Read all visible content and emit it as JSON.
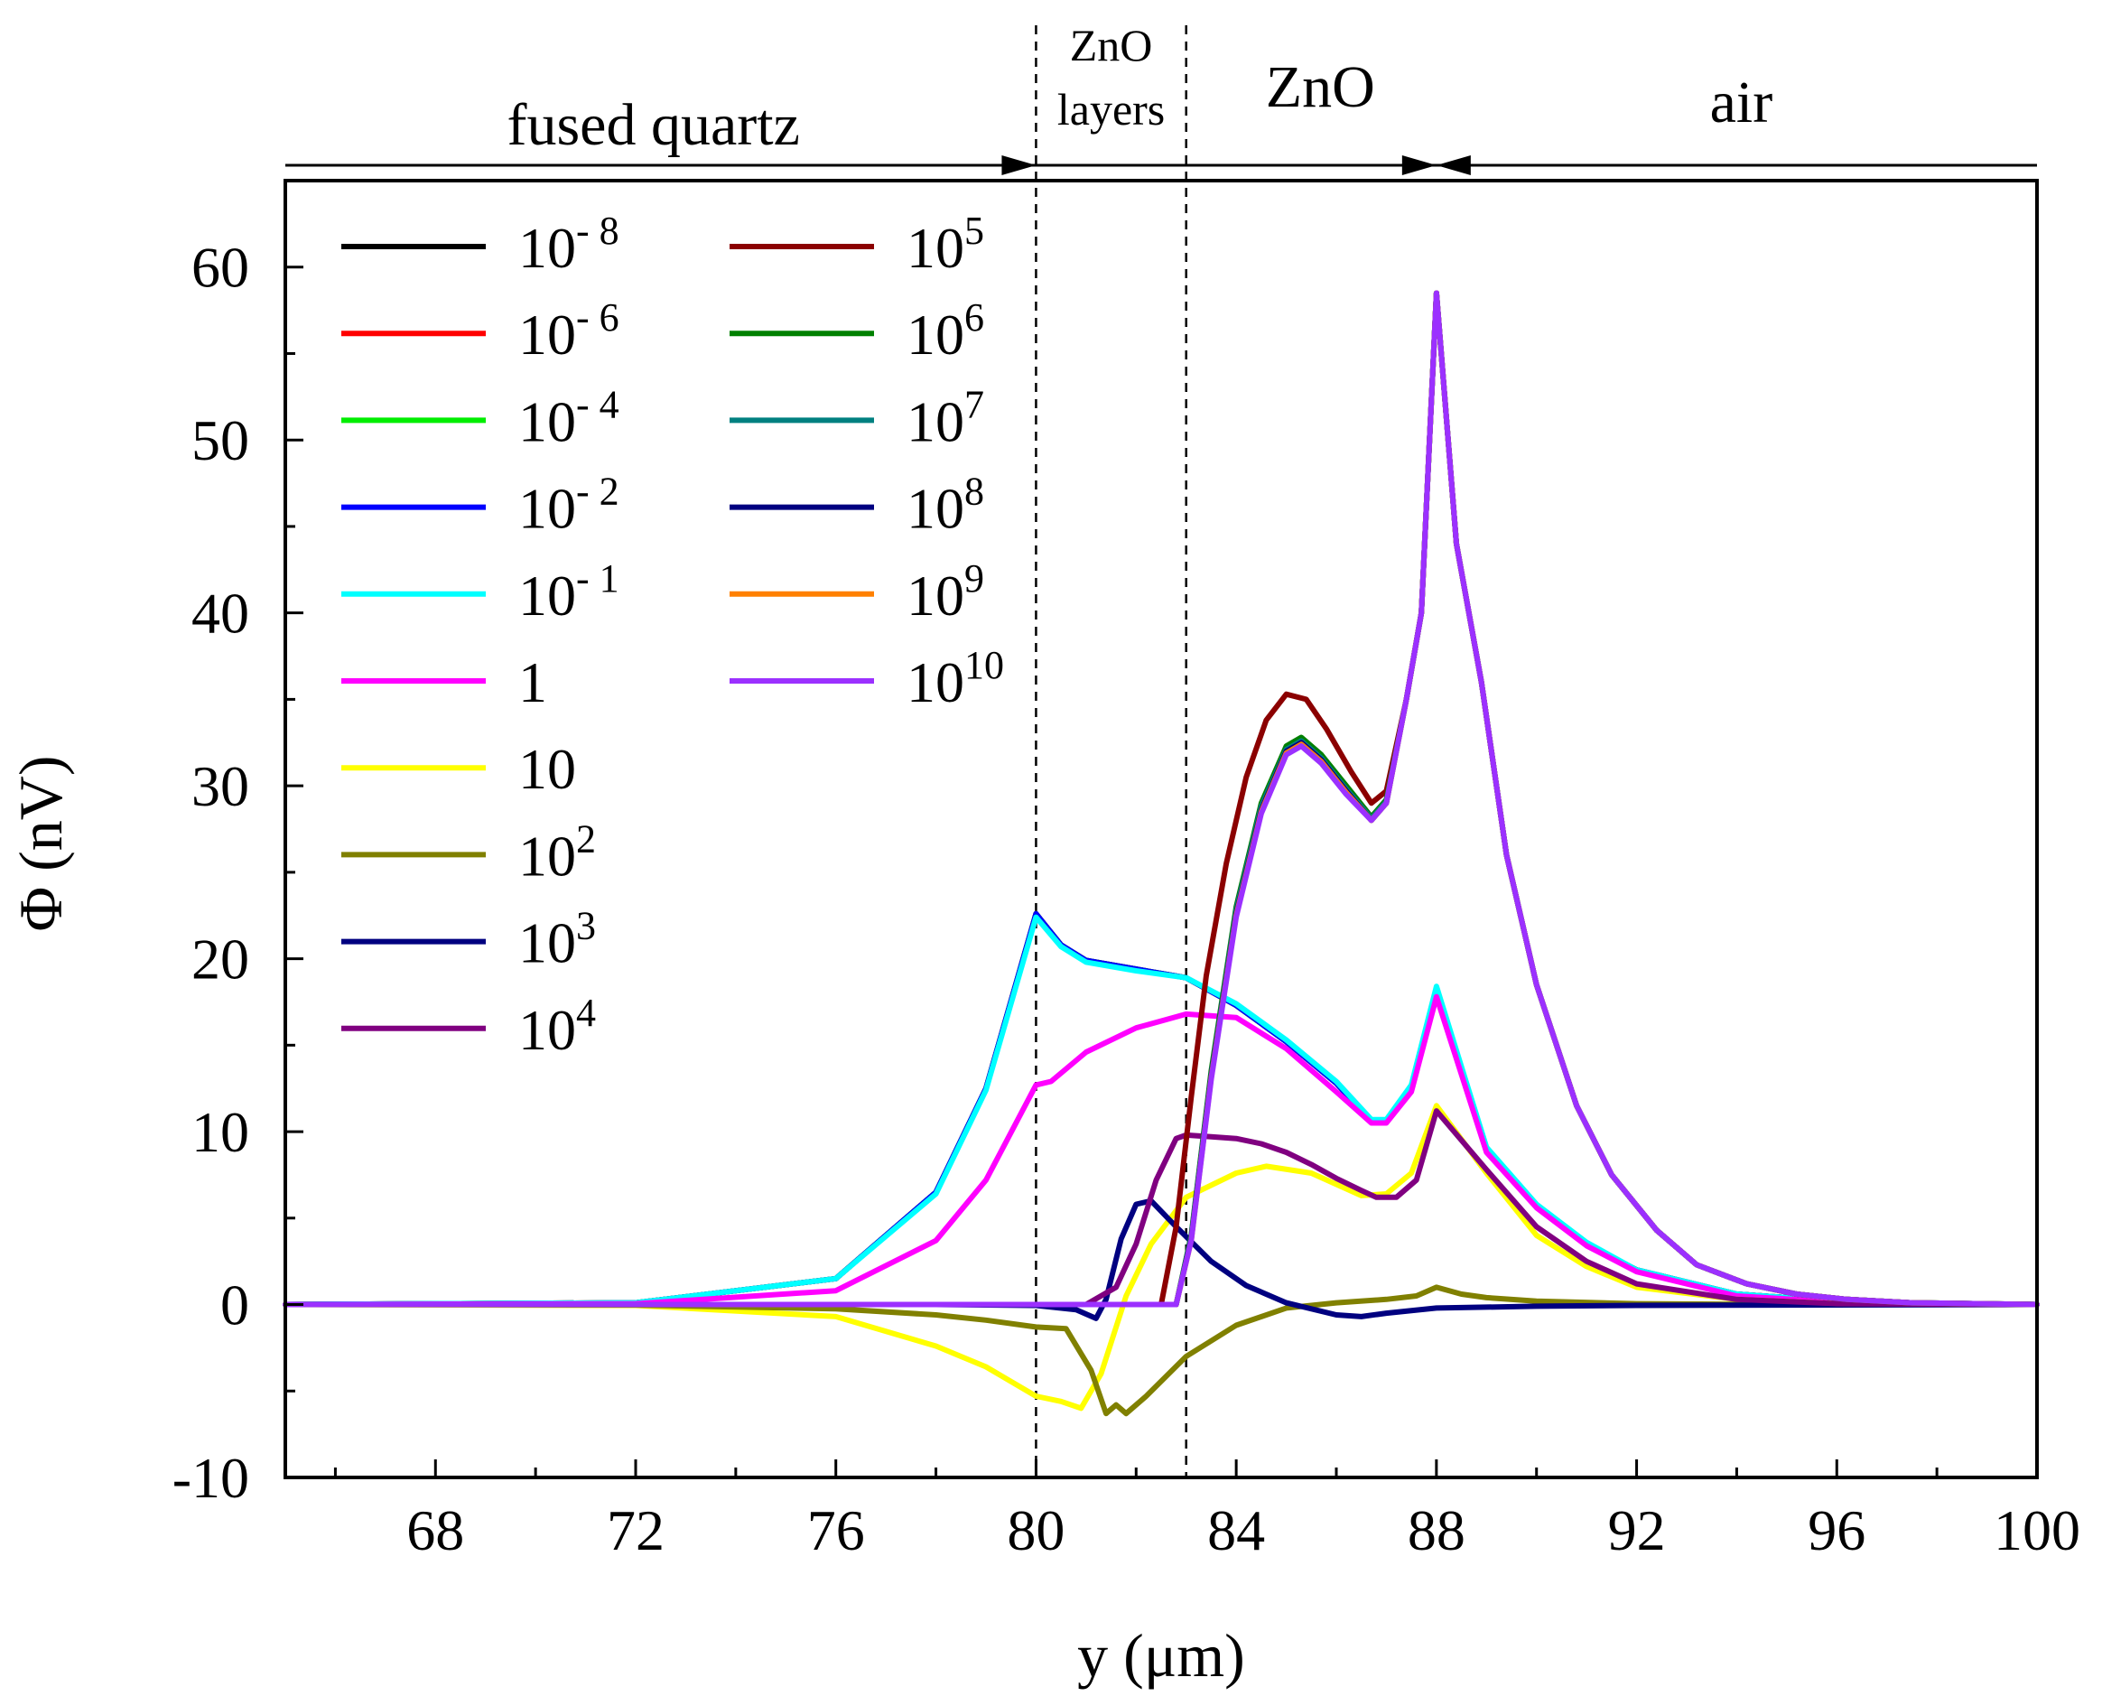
{
  "chart_data": {
    "type": "line",
    "xlabel": "y (μm)",
    "ylabel": "Φ (nV)",
    "xlim": [
      65,
      100
    ],
    "ylim": [
      -10,
      65
    ],
    "xticks": [
      68,
      72,
      76,
      80,
      84,
      88,
      92,
      96,
      100
    ],
    "xtick_labels": [
      "68",
      "72",
      "76",
      "80",
      "84",
      "88",
      "92",
      "96",
      "100"
    ],
    "yticks": [
      -10,
      0,
      10,
      20,
      30,
      40,
      50,
      60
    ],
    "ytick_labels": [
      "-10",
      "0",
      "10",
      "20",
      "30",
      "40",
      "50",
      "60"
    ],
    "grid": false,
    "dashed_lines_x": [
      80,
      83
    ],
    "regions": [
      {
        "label": "fused quartz",
        "from": 65,
        "to": 80
      },
      {
        "label_line1": "ZnO",
        "label_line2": "layers",
        "from": 80,
        "to": 83
      },
      {
        "label": "ZnO",
        "from": 83,
        "to": 88
      },
      {
        "label": "air",
        "from": 88,
        "to": 100
      }
    ],
    "legend_placement": "top-left, two columns",
    "series": [
      {
        "name": "10-8",
        "base": "10",
        "exp": "- 8",
        "color": "#000000",
        "x": [
          65,
          72,
          76,
          78,
          79,
          80,
          80.5,
          81,
          82,
          83,
          84,
          85,
          86,
          86.7,
          87,
          87.5,
          88,
          89,
          90,
          91,
          92,
          94,
          96,
          98,
          100
        ],
        "y": [
          0,
          0.1,
          1.5,
          6.5,
          12.5,
          22.6,
          20.8,
          19.9,
          19.4,
          18.9,
          17.3,
          15.2,
          12.8,
          10.6,
          10.6,
          12.6,
          18.2,
          9.0,
          5.7,
          3.5,
          2.0,
          0.6,
          0.2,
          0.05,
          0
        ]
      },
      {
        "name": "10-6",
        "base": "10",
        "exp": "- 6",
        "color": "#ff0000",
        "x": [
          65,
          72,
          76,
          78,
          79,
          80,
          80.5,
          81,
          82,
          83,
          84,
          85,
          86,
          86.7,
          87,
          87.5,
          88,
          89,
          90,
          91,
          92,
          94,
          96,
          98,
          100
        ],
        "y": [
          0,
          0.1,
          1.5,
          6.5,
          12.5,
          22.6,
          20.8,
          19.9,
          19.4,
          18.9,
          17.3,
          15.2,
          12.8,
          10.6,
          10.6,
          12.6,
          18.2,
          9.0,
          5.7,
          3.5,
          2.0,
          0.6,
          0.2,
          0.05,
          0
        ]
      },
      {
        "name": "10-4",
        "base": "10",
        "exp": "- 4",
        "color": "#00ee00",
        "x": [
          65,
          72,
          76,
          78,
          79,
          80,
          80.5,
          81,
          82,
          83,
          84,
          85,
          86,
          86.7,
          87,
          87.5,
          88,
          89,
          90,
          91,
          92,
          94,
          96,
          98,
          100
        ],
        "y": [
          0,
          0.1,
          1.5,
          6.5,
          12.5,
          22.6,
          20.8,
          19.9,
          19.4,
          18.9,
          17.3,
          15.2,
          12.8,
          10.6,
          10.6,
          12.6,
          18.2,
          9.0,
          5.7,
          3.5,
          2.0,
          0.6,
          0.2,
          0.05,
          0
        ]
      },
      {
        "name": "10-2",
        "base": "10",
        "exp": "- 2",
        "color": "#0000ff",
        "x": [
          65,
          72,
          76,
          78,
          79,
          80,
          80.5,
          81,
          82,
          83,
          84,
          85,
          86,
          86.7,
          87,
          87.5,
          88,
          89,
          90,
          91,
          92,
          94,
          96,
          98,
          100
        ],
        "y": [
          0,
          0.1,
          1.5,
          6.5,
          12.5,
          22.6,
          20.8,
          19.9,
          19.4,
          18.9,
          17.3,
          15.2,
          12.8,
          10.6,
          10.6,
          12.6,
          18.2,
          9.0,
          5.7,
          3.5,
          2.0,
          0.6,
          0.2,
          0.05,
          0
        ]
      },
      {
        "name": "10-1",
        "base": "10",
        "exp": "- 1",
        "color": "#00ffff",
        "x": [
          65,
          72,
          76,
          78,
          79,
          80,
          80.5,
          81,
          82,
          83,
          84,
          85,
          86,
          86.7,
          87,
          87.5,
          88,
          89,
          90,
          91,
          92,
          94,
          96,
          98,
          100
        ],
        "y": [
          0,
          0.1,
          1.5,
          6.4,
          12.4,
          22.4,
          20.7,
          19.8,
          19.3,
          18.9,
          17.4,
          15.3,
          12.9,
          10.7,
          10.7,
          12.7,
          18.4,
          9.1,
          5.8,
          3.6,
          2.0,
          0.6,
          0.2,
          0.05,
          0
        ]
      },
      {
        "name": "1",
        "base": "1",
        "exp": "",
        "color": "#ff00ff",
        "x": [
          65,
          72,
          76,
          78,
          79,
          80,
          80.3,
          81,
          82,
          83,
          84,
          85,
          86,
          86.7,
          87,
          87.5,
          88,
          89,
          90,
          91,
          92,
          94,
          96,
          98,
          100
        ],
        "y": [
          0,
          0.05,
          0.8,
          3.7,
          7.2,
          12.7,
          12.9,
          14.6,
          16.0,
          16.8,
          16.6,
          14.8,
          12.3,
          10.5,
          10.5,
          12.3,
          17.8,
          8.8,
          5.6,
          3.4,
          1.9,
          0.5,
          0.15,
          0.03,
          0
        ]
      },
      {
        "name": "10",
        "base": "10",
        "exp": "",
        "color": "#ffff00",
        "x": [
          65,
          72,
          76,
          78,
          79,
          80,
          80.5,
          80.9,
          81.3,
          81.8,
          82.3,
          83,
          84,
          84.6,
          85.5,
          86.5,
          87,
          87.5,
          88,
          89,
          90,
          91,
          92,
          94,
          96,
          98,
          100
        ],
        "y": [
          0,
          -0.05,
          -0.7,
          -2.4,
          -3.6,
          -5.3,
          -5.6,
          -6.0,
          -4.0,
          0.5,
          3.5,
          6.2,
          7.6,
          8.0,
          7.6,
          6.3,
          6.4,
          7.6,
          11.5,
          7.6,
          4.0,
          2.2,
          1.0,
          0.3,
          0.05,
          0,
          0
        ]
      },
      {
        "name": "10²",
        "base": "10",
        "exp": "2",
        "color": "#808000",
        "x": [
          65,
          72,
          76,
          78,
          79,
          80,
          80.6,
          81.1,
          81.4,
          81.6,
          81.8,
          82.2,
          83,
          84,
          85,
          86,
          87,
          87.6,
          88,
          88.5,
          89,
          90,
          92,
          94,
          100
        ],
        "y": [
          0,
          -0.03,
          -0.25,
          -0.6,
          -0.9,
          -1.3,
          -1.4,
          -3.8,
          -6.3,
          -5.8,
          -6.3,
          -5.3,
          -3.0,
          -1.2,
          -0.2,
          0.1,
          0.3,
          0.5,
          1.0,
          0.6,
          0.4,
          0.2,
          0.05,
          0.02,
          0
        ]
      },
      {
        "name": "10³",
        "base": "10",
        "exp": "3",
        "color": "#000080",
        "x": [
          65,
          78,
          80,
          80.8,
          81.2,
          81.4,
          81.7,
          82.0,
          82.3,
          82.8,
          83.5,
          84.2,
          85,
          86,
          86.5,
          87,
          88,
          89,
          90,
          92,
          100
        ],
        "y": [
          0,
          0,
          -0.05,
          -0.3,
          -0.8,
          0.3,
          3.8,
          5.8,
          6.0,
          4.5,
          2.5,
          1.1,
          0.1,
          -0.6,
          -0.7,
          -0.5,
          -0.2,
          -0.15,
          -0.1,
          -0.05,
          0
        ]
      },
      {
        "name": "10⁴",
        "base": "10",
        "exp": "4",
        "color": "#800080",
        "x": [
          65,
          81,
          81.6,
          82.0,
          82.4,
          82.8,
          83.0,
          83.5,
          84,
          84.5,
          85,
          85.5,
          86,
          86.5,
          86.8,
          87.2,
          87.6,
          88,
          89,
          90,
          91,
          92,
          94,
          96,
          100
        ],
        "y": [
          0,
          0,
          1.0,
          3.5,
          7.2,
          9.6,
          9.8,
          9.7,
          9.6,
          9.3,
          8.8,
          8.1,
          7.3,
          6.6,
          6.2,
          6.2,
          7.2,
          11.2,
          7.8,
          4.5,
          2.5,
          1.2,
          0.3,
          0.05,
          0
        ]
      },
      {
        "name": "10⁵",
        "base": "10",
        "exp": "5",
        "color": "#8b0000",
        "x": [
          65,
          82.5,
          82.8,
          83.1,
          83.4,
          83.8,
          84.2,
          84.6,
          85.0,
          85.4,
          85.8,
          86.3,
          86.7,
          87.0,
          87.4,
          87.7,
          88.0,
          88.4,
          88.9,
          89.4,
          90,
          90.8,
          91.5,
          92.4,
          93.2,
          94.2,
          95.2,
          96.2,
          97.5,
          100
        ],
        "y": [
          0,
          0,
          4.5,
          12.0,
          19.0,
          25.5,
          30.5,
          33.8,
          35.3,
          35.0,
          33.3,
          30.8,
          29.0,
          29.7,
          35.0,
          40.0,
          58.5,
          44.0,
          36.0,
          26.0,
          18.5,
          11.5,
          7.5,
          4.3,
          2.3,
          1.2,
          0.6,
          0.3,
          0.1,
          0
        ]
      },
      {
        "name": "10⁶",
        "base": "10",
        "exp": "6",
        "color": "#008000",
        "x": [
          65,
          82.8,
          83.1,
          83.5,
          84.0,
          84.5,
          85.0,
          85.3,
          85.7,
          86.2,
          86.7,
          87.0,
          87.4,
          87.7,
          88.0,
          88.4,
          88.9,
          89.4,
          90,
          90.8,
          91.5,
          92.4,
          93.2,
          94.2,
          95.2,
          96.2,
          97.5,
          100
        ],
        "y": [
          0,
          0,
          4.0,
          13.5,
          23.0,
          29.0,
          32.3,
          32.8,
          31.8,
          30.0,
          28.2,
          29.2,
          35.0,
          40.0,
          58.5,
          44.0,
          36.0,
          26.0,
          18.5,
          11.5,
          7.5,
          4.3,
          2.3,
          1.2,
          0.6,
          0.3,
          0.1,
          0
        ]
      },
      {
        "name": "10⁷",
        "base": "10",
        "exp": "7",
        "color": "#008080",
        "x": [
          65,
          82.8,
          83.1,
          83.5,
          84.0,
          84.5,
          85.0,
          85.3,
          85.7,
          86.2,
          86.7,
          87.0,
          87.4,
          87.7,
          88.0,
          88.4,
          88.9,
          89.4,
          90,
          90.8,
          91.5,
          92.4,
          93.2,
          94.2,
          95.2,
          96.2,
          97.5,
          100
        ],
        "y": [
          0,
          0,
          3.9,
          13.3,
          22.8,
          28.8,
          32.1,
          32.6,
          31.6,
          29.8,
          28.1,
          29.1,
          35.0,
          40.0,
          58.5,
          44.0,
          36.0,
          26.0,
          18.5,
          11.5,
          7.5,
          4.3,
          2.3,
          1.2,
          0.6,
          0.3,
          0.1,
          0
        ]
      },
      {
        "name": "10⁸",
        "base": "10",
        "exp": "8",
        "color": "#000080",
        "x": [
          65,
          82.8,
          83.1,
          83.5,
          84.0,
          84.5,
          85.0,
          85.3,
          85.7,
          86.2,
          86.7,
          87.0,
          87.4,
          87.7,
          88.0,
          88.4,
          88.9,
          89.4,
          90,
          90.8,
          91.5,
          92.4,
          93.2,
          94.2,
          95.2,
          96.2,
          97.5,
          100
        ],
        "y": [
          0,
          0,
          3.8,
          13.2,
          22.6,
          28.6,
          32.0,
          32.5,
          31.5,
          29.7,
          28.0,
          29.0,
          35.0,
          40.0,
          58.5,
          44.0,
          36.0,
          26.0,
          18.5,
          11.5,
          7.5,
          4.3,
          2.3,
          1.2,
          0.6,
          0.3,
          0.1,
          0
        ]
      },
      {
        "name": "10⁹",
        "base": "10",
        "exp": "9",
        "color": "#ff8000",
        "x": [
          65,
          82.8,
          83.1,
          83.5,
          84.0,
          84.5,
          85.0,
          85.3,
          85.7,
          86.2,
          86.7,
          87.0,
          87.4,
          87.7,
          88.0,
          88.4,
          88.9,
          89.4,
          90,
          90.8,
          91.5,
          92.4,
          93.2,
          94.2,
          95.2,
          96.2,
          97.5,
          100
        ],
        "y": [
          0,
          0,
          3.7,
          13.1,
          22.5,
          28.5,
          31.9,
          32.4,
          31.4,
          29.6,
          28.0,
          29.0,
          35.0,
          40.0,
          58.5,
          44.0,
          36.0,
          26.0,
          18.5,
          11.5,
          7.5,
          4.3,
          2.3,
          1.2,
          0.6,
          0.3,
          0.1,
          0
        ]
      },
      {
        "name": "10¹⁰",
        "base": "10",
        "exp": "10",
        "color": "#9b30ff",
        "x": [
          65,
          82.8,
          83.1,
          83.5,
          84.0,
          84.5,
          85.0,
          85.3,
          85.7,
          86.2,
          86.7,
          87.0,
          87.4,
          87.7,
          88.0,
          88.4,
          88.9,
          89.4,
          90,
          90.8,
          91.5,
          92.4,
          93.2,
          94.2,
          95.2,
          96.2,
          97.5,
          100
        ],
        "y": [
          0,
          0,
          3.7,
          13.0,
          22.4,
          28.4,
          31.8,
          32.3,
          31.3,
          29.5,
          28.0,
          29.0,
          35.0,
          40.0,
          58.5,
          44.0,
          36.0,
          26.0,
          18.5,
          11.5,
          7.5,
          4.3,
          2.3,
          1.2,
          0.6,
          0.3,
          0.1,
          0
        ]
      }
    ]
  }
}
